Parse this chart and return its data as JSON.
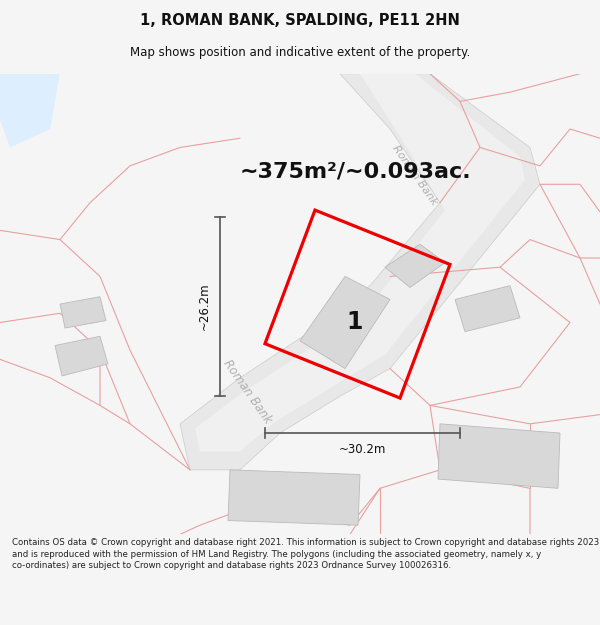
{
  "title": "1, ROMAN BANK, SPALDING, PE11 2HN",
  "subtitle": "Map shows position and indicative extent of the property.",
  "area_text": "~375m²/~0.093ac.",
  "dim_width": "~30.2m",
  "dim_height": "~26.2m",
  "label": "1",
  "footer": "Contains OS data © Crown copyright and database right 2021. This information is subject to Crown copyright and database rights 2023 and is reproduced with the permission of HM Land Registry. The polygons (including the associated geometry, namely x, y co-ordinates) are subject to Crown copyright and database rights 2023 Ordnance Survey 100026316.",
  "bg_color": "#f5f5f5",
  "map_bg": "#ffffff",
  "road_fill": "#e8e8e8",
  "road_edge": "#cccccc",
  "building_color": "#d8d8d8",
  "building_edge": "#bbbbbb",
  "boundary_color": "#e8a0a0",
  "highlight_color": "#ee0000",
  "dim_color": "#555555",
  "road_label_color": "#b0b0b0",
  "title_color": "#111111",
  "water_color": "#ddeeff"
}
